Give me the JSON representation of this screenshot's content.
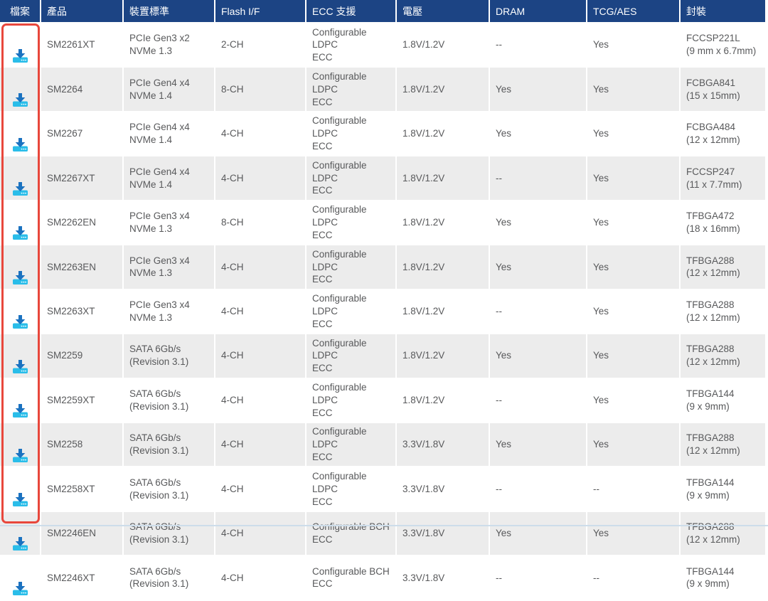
{
  "table": {
    "columns": [
      {
        "key": "file",
        "label": "檔案"
      },
      {
        "key": "product",
        "label": "產品"
      },
      {
        "key": "standard",
        "label": "裝置標準"
      },
      {
        "key": "flash",
        "label": "Flash I/F"
      },
      {
        "key": "ecc",
        "label": "ECC 支援"
      },
      {
        "key": "voltage",
        "label": "電壓"
      },
      {
        "key": "dram",
        "label": "DRAM"
      },
      {
        "key": "tcg",
        "label": "TCG/AES"
      },
      {
        "key": "package",
        "label": "封裝"
      }
    ],
    "rows": [
      {
        "product": "SM2261XT",
        "standard": "PCIe Gen3 x2\nNVMe 1.3",
        "flash": "2-CH",
        "ecc": "Configurable LDPC\nECC",
        "voltage": "1.8V/1.2V",
        "dram": "--",
        "tcg": "Yes",
        "package": "FCCSP221L\n(9 mm x 6.7mm)"
      },
      {
        "product": "SM2264",
        "standard": "PCIe Gen4 x4\nNVMe 1.4",
        "flash": "8-CH",
        "ecc": "Configurable LDPC\nECC",
        "voltage": "1.8V/1.2V",
        "dram": "Yes",
        "tcg": "Yes",
        "package": "FCBGA841\n(15 x 15mm)"
      },
      {
        "product": "SM2267",
        "standard": "PCIe Gen4 x4\nNVMe 1.4",
        "flash": "4-CH",
        "ecc": "Configurable LDPC\nECC",
        "voltage": "1.8V/1.2V",
        "dram": "Yes",
        "tcg": "Yes",
        "package": "FCBGA484\n(12 x 12mm)"
      },
      {
        "product": "SM2267XT",
        "standard": "PCIe Gen4 x4\nNVMe 1.4",
        "flash": "4-CH",
        "ecc": "Configurable LDPC\nECC",
        "voltage": "1.8V/1.2V",
        "dram": "--",
        "tcg": "Yes",
        "package": "FCCSP247\n(11 x 7.7mm)"
      },
      {
        "product": "SM2262EN",
        "standard": "PCIe Gen3 x4\nNVMe 1.3",
        "flash": "8-CH",
        "ecc": "Configurable LDPC\nECC",
        "voltage": "1.8V/1.2V",
        "dram": "Yes",
        "tcg": "Yes",
        "package": "TFBGA472\n(18 x 16mm)"
      },
      {
        "product": "SM2263EN",
        "standard": "PCIe Gen3 x4\nNVMe 1.3",
        "flash": "4-CH",
        "ecc": "Configurable LDPC\nECC",
        "voltage": "1.8V/1.2V",
        "dram": "Yes",
        "tcg": "Yes",
        "package": "TFBGA288\n(12 x 12mm)"
      },
      {
        "product": "SM2263XT",
        "standard": "PCIe Gen3 x4\nNVMe 1.3",
        "flash": "4-CH",
        "ecc": "Configurable LDPC\nECC",
        "voltage": "1.8V/1.2V",
        "dram": "--",
        "tcg": "Yes",
        "package": "TFBGA288\n(12 x 12mm)"
      },
      {
        "product": "SM2259",
        "standard": "SATA 6Gb/s\n(Revision 3.1)",
        "flash": "4-CH",
        "ecc": "Configurable LDPC\nECC",
        "voltage": "1.8V/1.2V",
        "dram": "Yes",
        "tcg": "Yes",
        "package": "TFBGA288\n(12 x 12mm)"
      },
      {
        "product": "SM2259XT",
        "standard": "SATA 6Gb/s\n(Revision 3.1)",
        "flash": "4-CH",
        "ecc": "Configurable LDPC\nECC",
        "voltage": "1.8V/1.2V",
        "dram": "--",
        "tcg": "Yes",
        "package": "TFBGA144\n(9 x 9mm)"
      },
      {
        "product": "SM2258",
        "standard": "SATA 6Gb/s\n(Revision 3.1)",
        "flash": "4-CH",
        "ecc": "Configurable LDPC\nECC",
        "voltage": "3.3V/1.8V",
        "dram": "Yes",
        "tcg": "Yes",
        "package": "TFBGA288\n(12 x 12mm)"
      },
      {
        "product": "SM2258XT",
        "standard": "SATA 6Gb/s\n(Revision 3.1)",
        "flash": "4-CH",
        "ecc": "Configurable LDPC\nECC",
        "voltage": "3.3V/1.8V",
        "dram": "--",
        "tcg": "--",
        "package": "TFBGA144\n(9 x 9mm)"
      },
      {
        "product": "SM2246EN",
        "standard": "SATA 6Gb/s\n(Revision 3.1)",
        "flash": "4-CH",
        "ecc": "Configurable BCH\nECC",
        "voltage": "3.3V/1.8V",
        "dram": "Yes",
        "tcg": "Yes",
        "package": "TFBGA288\n(12 x 12mm)"
      },
      {
        "product": "SM2246XT",
        "standard": "SATA 6Gb/s\n(Revision 3.1)",
        "flash": "4-CH",
        "ecc": "Configurable BCH\nECC",
        "voltage": "3.3V/1.8V",
        "dram": "--",
        "tcg": "--",
        "package": "TFBGA144\n(9 x 9mm)"
      }
    ]
  },
  "icons": {
    "download": "download-icon"
  },
  "colors": {
    "header_bg": "#1c4484",
    "header_text": "#ffffff",
    "row_alt_bg": "#ececec",
    "body_text": "#58595b",
    "highlight_border": "#e8473c",
    "icon_arrow": "#1b72c0",
    "icon_tray": "#2abde9",
    "bottom_divider": "#cdddea"
  }
}
